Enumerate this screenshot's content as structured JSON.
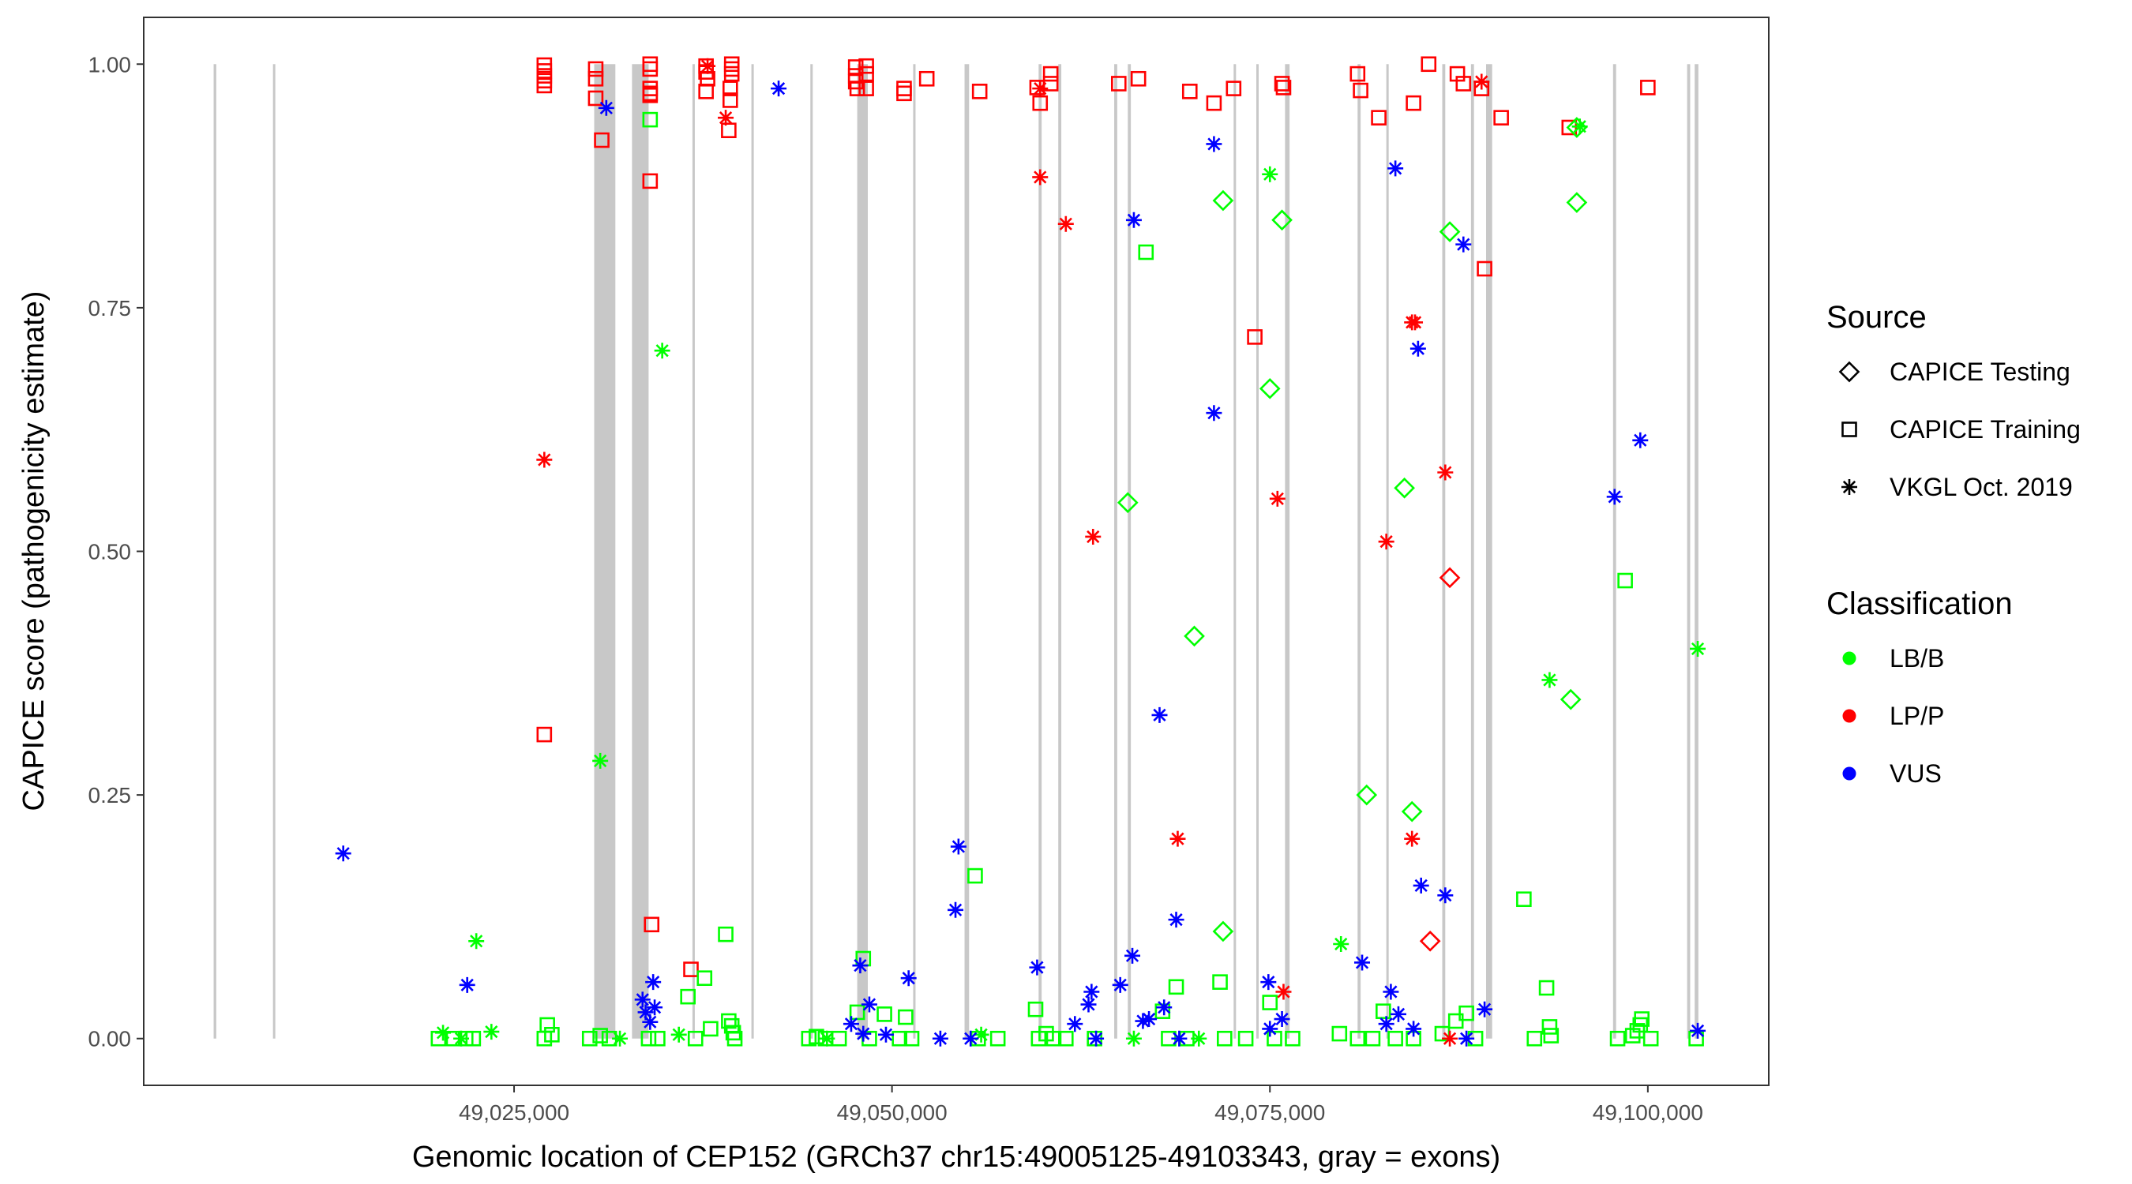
{
  "chart_data": {
    "type": "scatter",
    "title": "",
    "xlabel": "Genomic location of CEP152 (GRCh37 chr15:49005125-49103343, gray = exons)",
    "ylabel": "CAPICE score (pathogenicity estimate)",
    "xlim": [
      49000500,
      49108000
    ],
    "ylim": [
      -0.048,
      1.048
    ],
    "x_ticks": [
      49025000,
      49050000,
      49075000,
      49100000
    ],
    "x_tick_labels": [
      "49,025,000",
      "49,050,000",
      "49,075,000",
      "49,100,000"
    ],
    "y_ticks": [
      0,
      0.25,
      0.5,
      0.75,
      1.0
    ],
    "y_tick_labels": [
      "0.00",
      "0.25",
      "0.50",
      "0.75",
      "1.00"
    ],
    "grid": false,
    "exons": [
      {
        "start": 49005125,
        "end": 49005300
      },
      {
        "start": 49009050,
        "end": 49009200
      },
      {
        "start": 49030300,
        "end": 49031700
      },
      {
        "start": 49032800,
        "end": 49033900
      },
      {
        "start": 49036800,
        "end": 49036950
      },
      {
        "start": 49040700,
        "end": 49040850
      },
      {
        "start": 49044600,
        "end": 49044750
      },
      {
        "start": 49047700,
        "end": 49048400
      },
      {
        "start": 49051400,
        "end": 49051550
      },
      {
        "start": 49054800,
        "end": 49055100
      },
      {
        "start": 49059700,
        "end": 49059900
      },
      {
        "start": 49061000,
        "end": 49061200
      },
      {
        "start": 49064700,
        "end": 49064900
      },
      {
        "start": 49065600,
        "end": 49065800
      },
      {
        "start": 49072600,
        "end": 49072750
      },
      {
        "start": 49074100,
        "end": 49074250
      },
      {
        "start": 49076000,
        "end": 49076300
      },
      {
        "start": 49080800,
        "end": 49081000
      },
      {
        "start": 49082700,
        "end": 49082850
      },
      {
        "start": 49086400,
        "end": 49086600
      },
      {
        "start": 49088300,
        "end": 49088500
      },
      {
        "start": 49089300,
        "end": 49089700
      },
      {
        "start": 49097700,
        "end": 49097900
      },
      {
        "start": 49102600,
        "end": 49102800
      },
      {
        "start": 49103100,
        "end": 49103343
      }
    ],
    "legend": {
      "position": "right",
      "source_title": "Source",
      "source_entries": [
        {
          "label": "CAPICE Testing",
          "shape": "diamond"
        },
        {
          "label": "CAPICE Training",
          "shape": "square"
        },
        {
          "label": "VKGL Oct. 2019",
          "shape": "asterisk"
        }
      ],
      "class_title": "Classification",
      "class_entries": [
        {
          "label": "LB/B",
          "color": "#00ff00"
        },
        {
          "label": "LP/P",
          "color": "#ff0000"
        },
        {
          "label": "VUS",
          "color": "#0000ff"
        }
      ]
    },
    "colors": {
      "LB/B": "#00ff00",
      "LP/P": "#ff0000",
      "VUS": "#0000ff"
    },
    "series": [
      {
        "name": "CAPICE Training - LP/P",
        "shape": "square",
        "cls": "LP/P",
        "points": [
          [
            49027000,
            0.999
          ],
          [
            49027000,
            0.993
          ],
          [
            49027000,
            0.988
          ],
          [
            49027000,
            0.983
          ],
          [
            49027000,
            0.978
          ],
          [
            49027000,
            0.312
          ],
          [
            49030400,
            0.995
          ],
          [
            49030400,
            0.985
          ],
          [
            49030400,
            0.965
          ],
          [
            49030800,
            0.922
          ],
          [
            49034000,
            1.0
          ],
          [
            49034000,
            0.995
          ],
          [
            49034000,
            0.975
          ],
          [
            49034000,
            0.97
          ],
          [
            49034000,
            0.968
          ],
          [
            49034000,
            0.88
          ],
          [
            49034100,
            0.117
          ],
          [
            49037700,
            0.998
          ],
          [
            49037700,
            0.992
          ],
          [
            49037800,
            0.985
          ],
          [
            49037700,
            0.972
          ],
          [
            49036700,
            0.071
          ],
          [
            49039400,
            1.0
          ],
          [
            49039400,
            0.995
          ],
          [
            49039400,
            0.99
          ],
          [
            49039300,
            0.975
          ],
          [
            49039300,
            0.963
          ],
          [
            49039200,
            0.932
          ],
          [
            49047600,
            0.997
          ],
          [
            49047600,
            0.988
          ],
          [
            49047600,
            0.982
          ],
          [
            49047700,
            0.975
          ],
          [
            49048300,
            0.998
          ],
          [
            49048300,
            0.99
          ],
          [
            49048300,
            0.975
          ],
          [
            49050800,
            0.975
          ],
          [
            49050800,
            0.97
          ],
          [
            49052300,
            0.985
          ],
          [
            49055800,
            0.972
          ],
          [
            49059600,
            0.976
          ],
          [
            49059800,
            0.96
          ],
          [
            49060500,
            0.99
          ],
          [
            49060500,
            0.98
          ],
          [
            49065000,
            0.98
          ],
          [
            49066300,
            0.985
          ],
          [
            49069700,
            0.972
          ],
          [
            49071300,
            0.96
          ],
          [
            49072600,
            0.975
          ],
          [
            49074000,
            0.72
          ],
          [
            49075800,
            0.98
          ],
          [
            49075900,
            0.976
          ],
          [
            49080800,
            0.99
          ],
          [
            49081000,
            0.973
          ],
          [
            49082200,
            0.945
          ],
          [
            49084500,
            0.96
          ],
          [
            49085500,
            1.0
          ],
          [
            49087400,
            0.99
          ],
          [
            49087800,
            0.98
          ],
          [
            49089000,
            0.975
          ],
          [
            49089200,
            0.79
          ],
          [
            49090300,
            0.945
          ],
          [
            49094800,
            0.935
          ],
          [
            49100000,
            0.976
          ]
        ]
      },
      {
        "name": "CAPICE Training - LB/B",
        "shape": "square",
        "cls": "LB/B",
        "points": [
          [
            49020000,
            0.0
          ],
          [
            49021000,
            0.0
          ],
          [
            49021800,
            0.0
          ],
          [
            49022300,
            0.0
          ],
          [
            49027000,
            0.0
          ],
          [
            49027200,
            0.014
          ],
          [
            49027500,
            0.004
          ],
          [
            49030000,
            0.0
          ],
          [
            49030700,
            0.003
          ],
          [
            49031300,
            0.0
          ],
          [
            49033900,
            0.0
          ],
          [
            49034000,
            0.943
          ],
          [
            49034500,
            0.0
          ],
          [
            49036500,
            0.043
          ],
          [
            49037000,
            0.0
          ],
          [
            49037600,
            0.062
          ],
          [
            49038000,
            0.01
          ],
          [
            49039000,
            0.107
          ],
          [
            49039200,
            0.018
          ],
          [
            49039400,
            0.013
          ],
          [
            49039500,
            0.006
          ],
          [
            49039600,
            0.0
          ],
          [
            49044500,
            0.0
          ],
          [
            49045000,
            0.002
          ],
          [
            49045600,
            0.0
          ],
          [
            49046500,
            0.0
          ],
          [
            49047700,
            0.027
          ],
          [
            49048100,
            0.082
          ],
          [
            49048500,
            0.0
          ],
          [
            49049500,
            0.025
          ],
          [
            49050500,
            0.0
          ],
          [
            49050900,
            0.022
          ],
          [
            49051300,
            0.0
          ],
          [
            49055500,
            0.167
          ],
          [
            49055700,
            0.0
          ],
          [
            49057000,
            0.0
          ],
          [
            49059500,
            0.03
          ],
          [
            49059700,
            0.0
          ],
          [
            49060200,
            0.005
          ],
          [
            49060700,
            0.0
          ],
          [
            49061500,
            0.0
          ],
          [
            49063400,
            0.0
          ],
          [
            49066800,
            0.807
          ],
          [
            49067900,
            0.028
          ],
          [
            49068300,
            0.0
          ],
          [
            49068800,
            0.053
          ],
          [
            49069500,
            0.0
          ],
          [
            49071700,
            0.058
          ],
          [
            49072000,
            0.0
          ],
          [
            49073400,
            0.0
          ],
          [
            49075000,
            0.037
          ],
          [
            49075300,
            0.0
          ],
          [
            49076500,
            0.0
          ],
          [
            49079600,
            0.005
          ],
          [
            49080800,
            0.0
          ],
          [
            49081800,
            0.0
          ],
          [
            49082500,
            0.028
          ],
          [
            49083300,
            0.0
          ],
          [
            49084500,
            0.0
          ],
          [
            49086400,
            0.005
          ],
          [
            49087300,
            0.018
          ],
          [
            49088000,
            0.026
          ],
          [
            49088600,
            0.0
          ],
          [
            49091800,
            0.143
          ],
          [
            49092500,
            0.0
          ],
          [
            49093300,
            0.052
          ],
          [
            49093500,
            0.012
          ],
          [
            49093600,
            0.003
          ],
          [
            49098000,
            0.0
          ],
          [
            49098500,
            0.47
          ],
          [
            49099000,
            0.003
          ],
          [
            49099300,
            0.008
          ],
          [
            49099500,
            0.014
          ],
          [
            49099600,
            0.02
          ],
          [
            49100200,
            0.0
          ],
          [
            49103200,
            0.0
          ]
        ]
      },
      {
        "name": "CAPICE Testing - LB/B",
        "shape": "diamond",
        "cls": "LB/B",
        "points": [
          [
            49065600,
            0.55
          ],
          [
            49070000,
            0.413
          ],
          [
            49071900,
            0.86
          ],
          [
            49071900,
            0.11
          ],
          [
            49075000,
            0.667
          ],
          [
            49075800,
            0.84
          ],
          [
            49081400,
            0.25
          ],
          [
            49083900,
            0.565
          ],
          [
            49084400,
            0.233
          ],
          [
            49086900,
            0.828
          ],
          [
            49094900,
            0.348
          ],
          [
            49095300,
            0.935
          ],
          [
            49095300,
            0.858
          ]
        ]
      },
      {
        "name": "CAPICE Testing - LP/P",
        "shape": "diamond",
        "cls": "LP/P",
        "points": [
          [
            49086900,
            0.473
          ],
          [
            49085600,
            0.1
          ]
        ]
      },
      {
        "name": "VKGL Oct. 2019 - LP/P",
        "shape": "asterisk",
        "cls": "LP/P",
        "points": [
          [
            49027000,
            0.594
          ],
          [
            49037800,
            0.998
          ],
          [
            49039000,
            0.945
          ],
          [
            49059800,
            0.884
          ],
          [
            49059800,
            0.975
          ],
          [
            49061500,
            0.836
          ],
          [
            49063300,
            0.515
          ],
          [
            49068900,
            0.205
          ],
          [
            49075500,
            0.554
          ],
          [
            49075900,
            0.048
          ],
          [
            49082700,
            0.51
          ],
          [
            49084400,
            0.735
          ],
          [
            49084600,
            0.735
          ],
          [
            49084400,
            0.205
          ],
          [
            49086600,
            0.581
          ],
          [
            49086900,
            0.0
          ],
          [
            49089000,
            0.982
          ]
        ]
      },
      {
        "name": "VKGL Oct. 2019 - LB/B",
        "shape": "asterisk",
        "cls": "LB/B",
        "points": [
          [
            49020300,
            0.006
          ],
          [
            49021500,
            0.0
          ],
          [
            49022500,
            0.1
          ],
          [
            49023500,
            0.007
          ],
          [
            49030700,
            0.285
          ],
          [
            49034800,
            0.706
          ],
          [
            49032000,
            0.0
          ],
          [
            49035900,
            0.004
          ],
          [
            49055900,
            0.004
          ],
          [
            49075000,
            0.887
          ],
          [
            49079700,
            0.097
          ],
          [
            49093500,
            0.368
          ],
          [
            49095500,
            0.936
          ],
          [
            49103300,
            0.4
          ],
          [
            49066000,
            0.0
          ],
          [
            49070300,
            0.0
          ],
          [
            49045700,
            0.0
          ]
        ]
      },
      {
        "name": "VKGL Oct. 2019 - VUS",
        "shape": "asterisk",
        "cls": "VUS",
        "points": [
          [
            49013700,
            0.19
          ],
          [
            49021900,
            0.055
          ],
          [
            49031100,
            0.955
          ],
          [
            49033500,
            0.04
          ],
          [
            49033700,
            0.027
          ],
          [
            49034000,
            0.017
          ],
          [
            49034200,
            0.058
          ],
          [
            49034300,
            0.032
          ],
          [
            49042500,
            0.975
          ],
          [
            49047300,
            0.015
          ],
          [
            49047900,
            0.075
          ],
          [
            49048100,
            0.005
          ],
          [
            49048500,
            0.035
          ],
          [
            49049600,
            0.004
          ],
          [
            49051100,
            0.062
          ],
          [
            49053200,
            0.0
          ],
          [
            49054200,
            0.132
          ],
          [
            49054400,
            0.197
          ],
          [
            49055200,
            0.0
          ],
          [
            49059600,
            0.073
          ],
          [
            49062100,
            0.015
          ],
          [
            49063000,
            0.035
          ],
          [
            49063200,
            0.048
          ],
          [
            49063500,
            0.0
          ],
          [
            49065100,
            0.055
          ],
          [
            49065900,
            0.085
          ],
          [
            49066000,
            0.84
          ],
          [
            49066600,
            0.018
          ],
          [
            49067000,
            0.02
          ],
          [
            49067700,
            0.332
          ],
          [
            49068000,
            0.032
          ],
          [
            49068800,
            0.122
          ],
          [
            49069000,
            0.0
          ],
          [
            49071300,
            0.918
          ],
          [
            49071300,
            0.642
          ],
          [
            49074900,
            0.058
          ],
          [
            49075000,
            0.01
          ],
          [
            49075800,
            0.02
          ],
          [
            49081100,
            0.078
          ],
          [
            49082700,
            0.015
          ],
          [
            49083000,
            0.048
          ],
          [
            49083300,
            0.893
          ],
          [
            49083500,
            0.025
          ],
          [
            49084500,
            0.01
          ],
          [
            49084800,
            0.708
          ],
          [
            49085000,
            0.157
          ],
          [
            49086600,
            0.147
          ],
          [
            49087800,
            0.815
          ],
          [
            49088000,
            0.0
          ],
          [
            49089200,
            0.03
          ],
          [
            49097800,
            0.556
          ],
          [
            49099500,
            0.614
          ],
          [
            49103300,
            0.008
          ]
        ]
      }
    ]
  }
}
